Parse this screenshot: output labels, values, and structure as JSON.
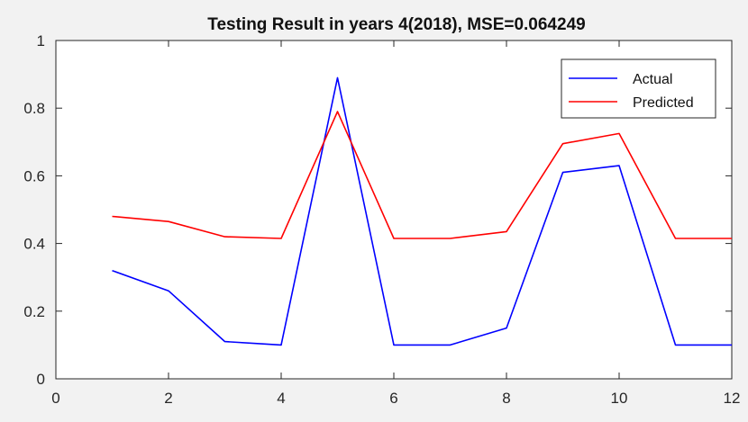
{
  "chart_data": {
    "type": "line",
    "title": "Testing Result in years 4(2018), MSE=0.064249",
    "xlabel": "",
    "ylabel": "",
    "xlim": [
      0,
      12
    ],
    "ylim": [
      0,
      1
    ],
    "xticks": [
      0,
      2,
      4,
      6,
      8,
      10,
      12
    ],
    "yticks": [
      0,
      0.2,
      0.4,
      0.6,
      0.8,
      1
    ],
    "xtick_labels": [
      "0",
      "2",
      "4",
      "6",
      "8",
      "10",
      "12"
    ],
    "ytick_labels": [
      "0",
      "0.2",
      "0.4",
      "0.6",
      "0.8",
      "1"
    ],
    "grid": false,
    "legend_position": "top-right",
    "x": [
      1,
      2,
      3,
      4,
      5,
      6,
      7,
      8,
      9,
      10,
      11,
      12
    ],
    "series": [
      {
        "name": "Actual",
        "color": "#0000ff",
        "values": [
          0.32,
          0.26,
          0.11,
          0.1,
          0.89,
          0.1,
          0.1,
          0.15,
          0.61,
          0.63,
          0.1,
          0.1
        ]
      },
      {
        "name": "Predicted",
        "color": "#ff0000",
        "values": [
          0.48,
          0.465,
          0.42,
          0.415,
          0.79,
          0.415,
          0.415,
          0.435,
          0.695,
          0.725,
          0.415,
          0.415
        ]
      }
    ]
  }
}
